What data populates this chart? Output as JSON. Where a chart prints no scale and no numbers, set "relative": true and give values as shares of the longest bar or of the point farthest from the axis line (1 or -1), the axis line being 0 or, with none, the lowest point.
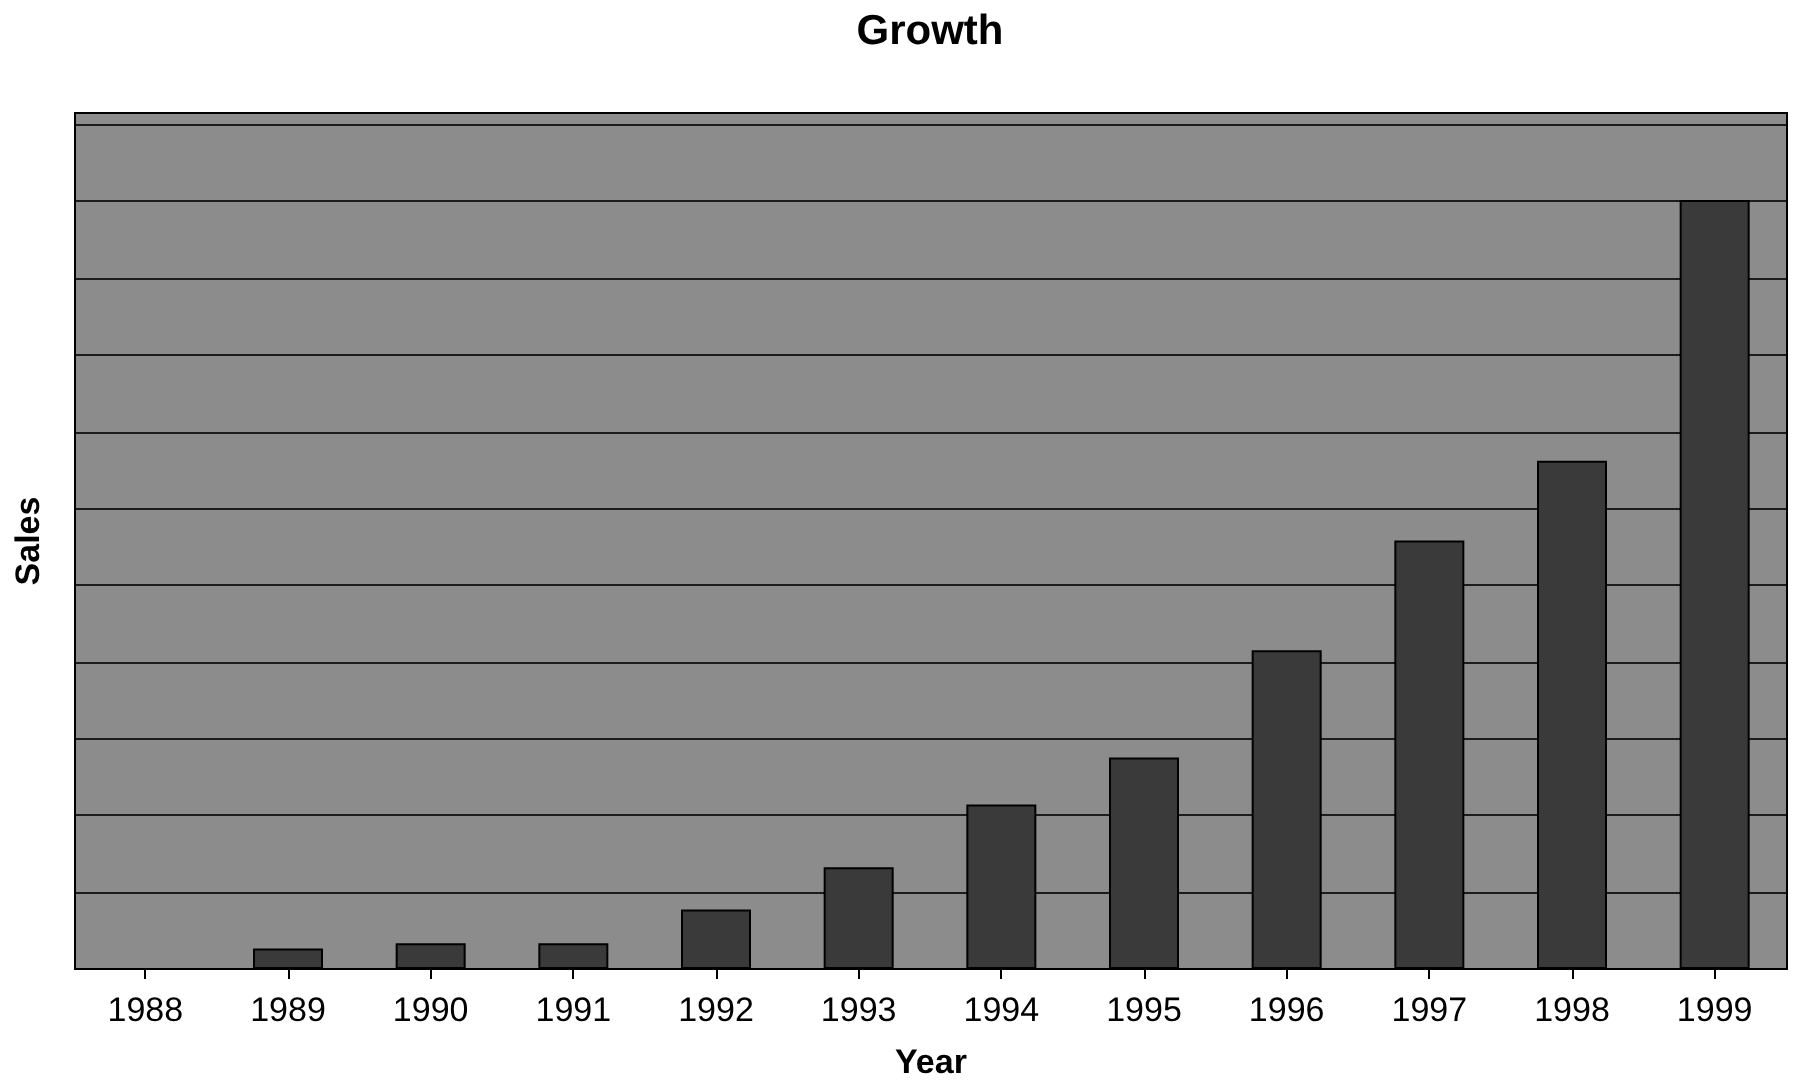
{
  "chart_data": {
    "type": "bar",
    "title": "Growth",
    "xlabel": "Year",
    "ylabel": "Sales",
    "categories": [
      "1988",
      "1989",
      "1990",
      "1991",
      "1992",
      "1993",
      "1994",
      "1995",
      "1996",
      "1997",
      "1998",
      "1999"
    ],
    "values": [
      null,
      0.024,
      0.031,
      0.031,
      0.075,
      0.13,
      0.212,
      0.273,
      0.413,
      0.556,
      0.66,
      1
    ],
    "color": "#3a3a3a",
    "relative": true,
    "grid": "y"
  }
}
